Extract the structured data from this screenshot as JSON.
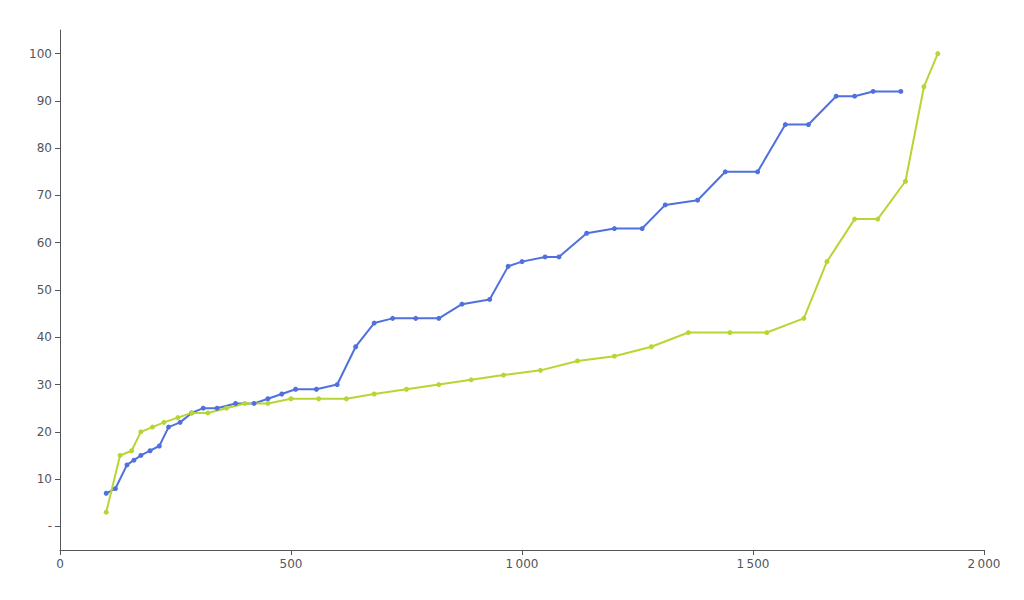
{
  "chart_data": {
    "type": "line",
    "marker": "circle",
    "grid": false,
    "series": [
      {
        "x": [
          100,
          120,
          145,
          160,
          175,
          195,
          215,
          235,
          260,
          285,
          310,
          340,
          380,
          420,
          450,
          480,
          510,
          555,
          600,
          640,
          680,
          720,
          770,
          820,
          870,
          930,
          970,
          1000,
          1050,
          1080,
          1140,
          1200,
          1260,
          1310,
          1380,
          1440,
          1510,
          1570,
          1620,
          1680,
          1720,
          1760,
          1820
        ],
        "values": [
          7,
          8,
          13,
          14,
          15,
          16,
          17,
          21,
          22,
          24,
          25,
          25,
          26,
          26,
          27,
          28,
          29,
          29,
          30,
          38,
          43,
          44,
          44,
          44,
          47,
          48,
          55,
          56,
          57,
          57,
          62,
          63,
          63,
          68,
          69,
          75,
          75,
          85,
          85,
          91,
          91,
          92,
          92
        ]
      },
      {
        "x": [
          100,
          130,
          155,
          175,
          200,
          225,
          255,
          285,
          320,
          360,
          400,
          450,
          500,
          560,
          620,
          680,
          750,
          820,
          890,
          960,
          1040,
          1120,
          1200,
          1280,
          1360,
          1450,
          1530,
          1610,
          1660,
          1720,
          1770,
          1830,
          1870,
          1900
        ],
        "values": [
          3,
          15,
          16,
          20,
          21,
          22,
          23,
          24,
          24,
          25,
          26,
          26,
          27,
          27,
          27,
          28,
          29,
          30,
          31,
          32,
          33,
          35,
          36,
          38,
          41,
          41,
          41,
          44,
          56,
          65,
          65,
          73,
          93,
          100
        ]
      }
    ],
    "xlim": [
      0,
      2000
    ],
    "xticks": [
      0,
      500,
      {
        "value": 1000,
        "label": "1 000"
      },
      {
        "value": 1500,
        "label": "1 500"
      },
      {
        "value": 2000,
        "label": "2 000"
      }
    ],
    "ylim": [
      -5,
      105
    ],
    "yticks": [
      {
        "value": 0,
        "label": "-"
      },
      10,
      20,
      30,
      40,
      50,
      60,
      70,
      80,
      90,
      100
    ]
  }
}
